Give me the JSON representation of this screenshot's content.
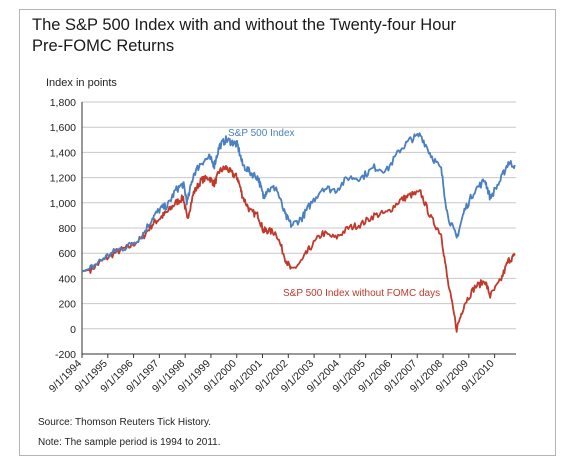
{
  "title_line1": "The S&P 500 Index with and without the Twenty-four Hour",
  "title_line2": "Pre-FOMC Returns",
  "y_unit": "Index in points",
  "source": "Source: Thomson Reuters Tick History.",
  "note": "Note: The sample period is 1994 to 2011.",
  "colors": {
    "sp500": "#4a7fc1",
    "without_fomc": "#c0392b",
    "grid": "#c8c8c8"
  },
  "chart_data": {
    "type": "line",
    "title": "The S&P 500 Index with and without the Twenty-four Hour Pre-FOMC Returns",
    "ylabel": "Index in points",
    "ylim": [
      -200,
      1800
    ],
    "xlim": [
      1994.67,
      2011.5
    ],
    "yticks": [
      -200,
      0,
      200,
      400,
      600,
      800,
      1000,
      1200,
      1400,
      1600,
      1800
    ],
    "ytick_labels": [
      "-200",
      "0",
      "200",
      "400",
      "600",
      "800",
      "1,000",
      "1,200",
      "1,400",
      "1,600",
      "1,800"
    ],
    "xtick_labels": [
      "9/1/1994",
      "9/1/1995",
      "9/1/1996",
      "9/1/1997",
      "9/1/1998",
      "9/1/1999",
      "9/1/2000",
      "9/1/2001",
      "9/1/2002",
      "9/1/2003",
      "9/1/2004",
      "9/1/2005",
      "9/1/2006",
      "9/1/2007",
      "9/1/2008",
      "9/1/2009",
      "9/1/2010"
    ],
    "grid": true,
    "series": [
      {
        "name": "S&P 500 Index",
        "x": [
          1994.67,
          1995.0,
          1995.5,
          1996.0,
          1996.5,
          1997.0,
          1997.4,
          1997.7,
          1998.0,
          1998.3,
          1998.6,
          1998.75,
          1999.0,
          1999.3,
          1999.6,
          1999.8,
          2000.0,
          2000.25,
          2000.5,
          2000.7,
          2000.9,
          2001.2,
          2001.5,
          2001.7,
          2001.85,
          2002.2,
          2002.55,
          2002.8,
          2003.2,
          2003.5,
          2004.0,
          2004.5,
          2005.0,
          2005.5,
          2006.0,
          2006.5,
          2007.0,
          2007.4,
          2007.8,
          2008.2,
          2008.6,
          2008.85,
          2009.2,
          2009.5,
          2009.9,
          2010.3,
          2010.5,
          2010.9,
          2011.2,
          2011.45
        ],
        "values": [
          455,
          480,
          560,
          620,
          660,
          740,
          880,
          950,
          980,
          1100,
          1150,
          1000,
          1230,
          1320,
          1360,
          1300,
          1450,
          1500,
          1480,
          1460,
          1300,
          1240,
          1200,
          1050,
          1100,
          1120,
          900,
          820,
          880,
          980,
          1120,
          1100,
          1200,
          1200,
          1280,
          1260,
          1420,
          1500,
          1540,
          1380,
          1260,
          900,
          720,
          940,
          1100,
          1180,
          1040,
          1180,
          1320,
          1300
        ]
      },
      {
        "name": "S&P 500 Index without FOMC days",
        "x": [
          1994.67,
          1995.0,
          1995.5,
          1996.0,
          1996.5,
          1997.0,
          1997.4,
          1997.7,
          1998.0,
          1998.3,
          1998.6,
          1998.75,
          1999.0,
          1999.3,
          1999.6,
          1999.8,
          2000.0,
          2000.25,
          2000.5,
          2000.7,
          2000.9,
          2001.2,
          2001.5,
          2001.7,
          2001.85,
          2002.2,
          2002.55,
          2002.8,
          2003.2,
          2003.5,
          2004.0,
          2004.5,
          2005.0,
          2005.5,
          2006.0,
          2006.5,
          2007.0,
          2007.4,
          2007.8,
          2008.2,
          2008.6,
          2008.85,
          2009.2,
          2009.5,
          2009.9,
          2010.3,
          2010.5,
          2010.9,
          2011.2,
          2011.45
        ],
        "values": [
          455,
          470,
          545,
          610,
          650,
          720,
          830,
          880,
          930,
          1000,
          1040,
          870,
          1080,
          1180,
          1200,
          1150,
          1250,
          1280,
          1230,
          1200,
          1050,
          930,
          900,
          780,
          780,
          760,
          560,
          460,
          540,
          640,
          760,
          720,
          800,
          830,
          900,
          920,
          1020,
          1060,
          1080,
          880,
          750,
          380,
          0,
          200,
          330,
          380,
          260,
          380,
          540,
          580
        ]
      }
    ]
  }
}
